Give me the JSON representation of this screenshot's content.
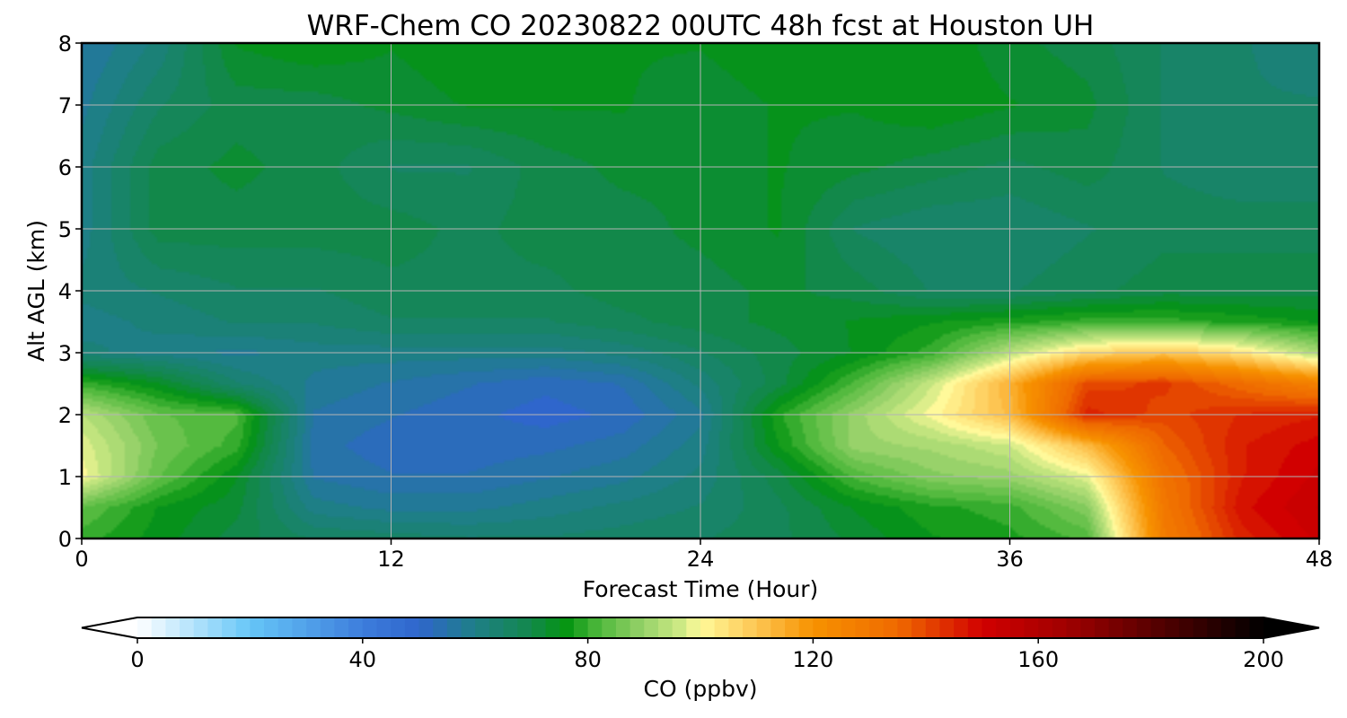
{
  "chart_data": {
    "type": "heatmap",
    "title": "WRF-Chem CO  20230822 00UTC 48h fcst at Houston UH",
    "xlabel": "Forecast Time (Hour)",
    "ylabel": "Alt AGL (km)",
    "xlim": [
      0,
      48
    ],
    "ylim": [
      0,
      8
    ],
    "xticks": [
      0,
      12,
      24,
      36,
      48
    ],
    "yticks": [
      0,
      1,
      2,
      3,
      4,
      5,
      6,
      7,
      8
    ],
    "grid": true,
    "x": [
      0,
      3,
      6,
      9,
      12,
      15,
      18,
      21,
      24,
      27,
      30,
      33,
      36,
      39,
      42,
      45,
      48
    ],
    "y": [
      0,
      0.5,
      1,
      1.5,
      2,
      2.5,
      3,
      3.5,
      4,
      5,
      6,
      7,
      8
    ],
    "z": [
      [
        80,
        75,
        70,
        66,
        65,
        64,
        64,
        65,
        66,
        68,
        72,
        76,
        78,
        82,
        128,
        145,
        152
      ],
      [
        84,
        76,
        72,
        60,
        58,
        58,
        60,
        62,
        64,
        68,
        74,
        78,
        80,
        88,
        130,
        148,
        154
      ],
      [
        100,
        84,
        74,
        56,
        54,
        54,
        56,
        58,
        62,
        70,
        82,
        88,
        90,
        98,
        132,
        146,
        152
      ],
      [
        98,
        86,
        80,
        55,
        52,
        52,
        53,
        55,
        60,
        76,
        90,
        92,
        96,
        112,
        136,
        146,
        150
      ],
      [
        94,
        84,
        82,
        56,
        54,
        52,
        50,
        52,
        58,
        78,
        90,
        100,
        112,
        145,
        140,
        144,
        146
      ],
      [
        80,
        74,
        64,
        58,
        56,
        54,
        52,
        54,
        62,
        70,
        82,
        96,
        114,
        140,
        142,
        134,
        126
      ],
      [
        62,
        60,
        58,
        60,
        60,
        60,
        60,
        62,
        66,
        70,
        74,
        80,
        94,
        106,
        110,
        104,
        92
      ],
      [
        60,
        62,
        64,
        64,
        66,
        66,
        66,
        68,
        70,
        72,
        74,
        76,
        78,
        80,
        80,
        78,
        76
      ],
      [
        62,
        64,
        66,
        66,
        68,
        68,
        68,
        70,
        70,
        72,
        70,
        66,
        66,
        68,
        70,
        70,
        70
      ],
      [
        60,
        70,
        70,
        70,
        70,
        68,
        70,
        70,
        72,
        74,
        66,
        64,
        64,
        66,
        68,
        68,
        68
      ],
      [
        60,
        70,
        72,
        70,
        66,
        66,
        70,
        72,
        72,
        74,
        72,
        70,
        68,
        70,
        66,
        64,
        64
      ],
      [
        58,
        66,
        70,
        70,
        72,
        74,
        74,
        74,
        72,
        74,
        74,
        76,
        74,
        72,
        66,
        64,
        64
      ],
      [
        56,
        62,
        74,
        76,
        74,
        76,
        76,
        74,
        74,
        76,
        76,
        76,
        72,
        70,
        66,
        64,
        62
      ]
    ],
    "colorbar": {
      "label": "CO  (ppbv)",
      "min": 0,
      "max": 200,
      "ticks": [
        0,
        40,
        80,
        120,
        160,
        200
      ],
      "extend": "both",
      "stops": [
        [
          0,
          "#ffffff"
        ],
        [
          20,
          "#66c6f7"
        ],
        [
          40,
          "#3d7ddc"
        ],
        [
          50,
          "#2f66cc"
        ],
        [
          60,
          "#1e7f86"
        ],
        [
          70,
          "#12884a"
        ],
        [
          76,
          "#049411"
        ],
        [
          82,
          "#4fb83c"
        ],
        [
          90,
          "#98d26a"
        ],
        [
          96,
          "#c9e882"
        ],
        [
          100,
          "#fff99a"
        ],
        [
          110,
          "#fdc552"
        ],
        [
          120,
          "#f79200"
        ],
        [
          135,
          "#ef6a00"
        ],
        [
          150,
          "#d10000"
        ],
        [
          165,
          "#a00000"
        ],
        [
          180,
          "#5a0000"
        ],
        [
          200,
          "#000000"
        ]
      ]
    }
  }
}
